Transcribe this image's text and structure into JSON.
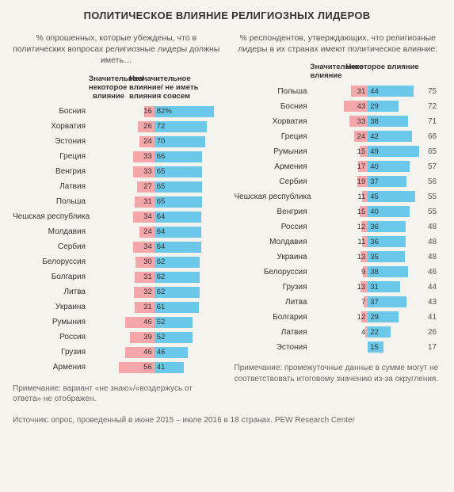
{
  "title": "ПОЛИТИЧЕСКОЕ ВЛИЯНИЕ РЕЛИГИОЗНЫХ ЛИДЕРОВ",
  "colors": {
    "pink": "#f4a6a8",
    "blue": "#6cc8e8",
    "background": "#f5f3ee",
    "text": "#333333",
    "muted": "#666666"
  },
  "left": {
    "subtitle": "% опрошенных, которые убеждены, что в политических вопросах религиозные лидеры должны иметь…",
    "header_a": "Значительное/некоторое влияние",
    "header_b": "Незначительное влияние/ не иметь влияния совсем",
    "max_b": 90,
    "show_pct_first": true,
    "rows": [
      {
        "label": "Босния",
        "a": 16,
        "b": 82
      },
      {
        "label": "Хорватия",
        "a": 26,
        "b": 72
      },
      {
        "label": "Эстония",
        "a": 24,
        "b": 70
      },
      {
        "label": "Греция",
        "a": 33,
        "b": 66
      },
      {
        "label": "Венгрия",
        "a": 33,
        "b": 65
      },
      {
        "label": "Латвия",
        "a": 27,
        "b": 65
      },
      {
        "label": "Польша",
        "a": 31,
        "b": 65
      },
      {
        "label": "Чешская республика",
        "a": 34,
        "b": 64
      },
      {
        "label": "Молдавия",
        "a": 24,
        "b": 64
      },
      {
        "label": "Сербия",
        "a": 34,
        "b": 64
      },
      {
        "label": "Белоруссия",
        "a": 30,
        "b": 62
      },
      {
        "label": "Болгария",
        "a": 31,
        "b": 62
      },
      {
        "label": "Литва",
        "a": 32,
        "b": 62
      },
      {
        "label": "Украина",
        "a": 31,
        "b": 61
      },
      {
        "label": "Румыния",
        "a": 46,
        "b": 52
      },
      {
        "label": "Россия",
        "a": 39,
        "b": 52
      },
      {
        "label": "Грузия",
        "a": 46,
        "b": 46
      },
      {
        "label": "Армения",
        "a": 56,
        "b": 41
      }
    ],
    "note": "Примечание: вариант «не знаю»/«воздержусь от ответа» не отображен."
  },
  "right": {
    "subtitle": "% респондентов, утверждающих, что религиозные лидеры в их странах имеют политическое влияние:",
    "header_a": "Значительное влияние",
    "header_b": "Некоторое влияние",
    "max_b": 55,
    "rows": [
      {
        "label": "Польша",
        "a": 31,
        "b": 44,
        "t": 75
      },
      {
        "label": "Босния",
        "a": 43,
        "b": 29,
        "t": 72
      },
      {
        "label": "Хорватия",
        "a": 33,
        "b": 38,
        "t": 71
      },
      {
        "label": "Греция",
        "a": 24,
        "b": 42,
        "t": 66
      },
      {
        "label": "Румыния",
        "a": 15,
        "b": 49,
        "t": 65
      },
      {
        "label": "Армения",
        "a": 17,
        "b": 40,
        "t": 57
      },
      {
        "label": "Сербия",
        "a": 19,
        "b": 37,
        "t": 56
      },
      {
        "label": "Чешская республика",
        "a": 11,
        "b": 45,
        "t": 55
      },
      {
        "label": "Венгрия",
        "a": 15,
        "b": 40,
        "t": 55
      },
      {
        "label": "Россия",
        "a": 12,
        "b": 36,
        "t": 48
      },
      {
        "label": "Молдавия",
        "a": 11,
        "b": 36,
        "t": 48
      },
      {
        "label": "Украина",
        "a": 13,
        "b": 35,
        "t": 48
      },
      {
        "label": "Белоруссия",
        "a": 9,
        "b": 38,
        "t": 46
      },
      {
        "label": "Грузия",
        "a": 13,
        "b": 31,
        "t": 44
      },
      {
        "label": "Литва",
        "a": 7,
        "b": 37,
        "t": 43
      },
      {
        "label": "Болгария",
        "a": 12,
        "b": 29,
        "t": 41
      },
      {
        "label": "Латвия",
        "a": 4,
        "b": 22,
        "t": 26
      },
      {
        "label": "Эстония",
        "a": null,
        "b": 15,
        "t": 17
      }
    ],
    "note": "Примечание: промежуточные данные в сумме могут не соответствовать итоговому значению из-за округления."
  },
  "source": "Источник: опрос, проведенный в июне 2015 – июле 2016 в 18 странах. PEW Research Center"
}
